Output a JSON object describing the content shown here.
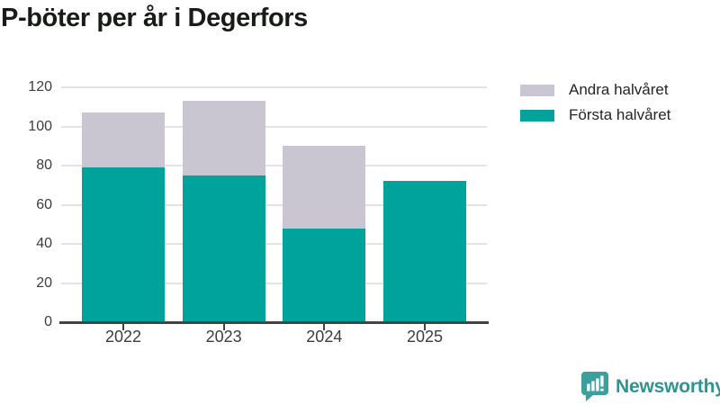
{
  "title": "P-böter per år i Degerfors",
  "chart_data": {
    "type": "bar",
    "stacked": true,
    "categories": [
      "2022",
      "2023",
      "2024",
      "2025"
    ],
    "series": [
      {
        "name": "Första halvåret",
        "color": "#00a39b",
        "values": [
          79,
          75,
          48,
          72
        ]
      },
      {
        "name": "Andra halvåret",
        "color": "#c9c6d1",
        "values": [
          28,
          38,
          42,
          0
        ]
      }
    ],
    "totals": [
      107,
      113,
      90,
      72
    ],
    "ylim": [
      0,
      120
    ],
    "yticks": [
      0,
      20,
      40,
      60,
      80,
      100,
      120
    ],
    "xlabel": "",
    "ylabel": "",
    "grid": true,
    "legend_position": "top-right",
    "legend_order": [
      "Andra halvåret",
      "Första halvåret"
    ]
  },
  "legend": [
    {
      "label": "Andra halvåret",
      "color": "#c9c6d1"
    },
    {
      "label": "Första halvåret",
      "color": "#00a39b"
    }
  ],
  "colors": {
    "first_half": "#00a39b",
    "second_half": "#c9c6d1",
    "axis": "#424443",
    "gridline": "#e4e3e7",
    "brand": "#2c9492"
  },
  "branding": {
    "logo_text": "Newsworthy",
    "logo_icon": "bar-chart-speech-bubble-icon"
  }
}
